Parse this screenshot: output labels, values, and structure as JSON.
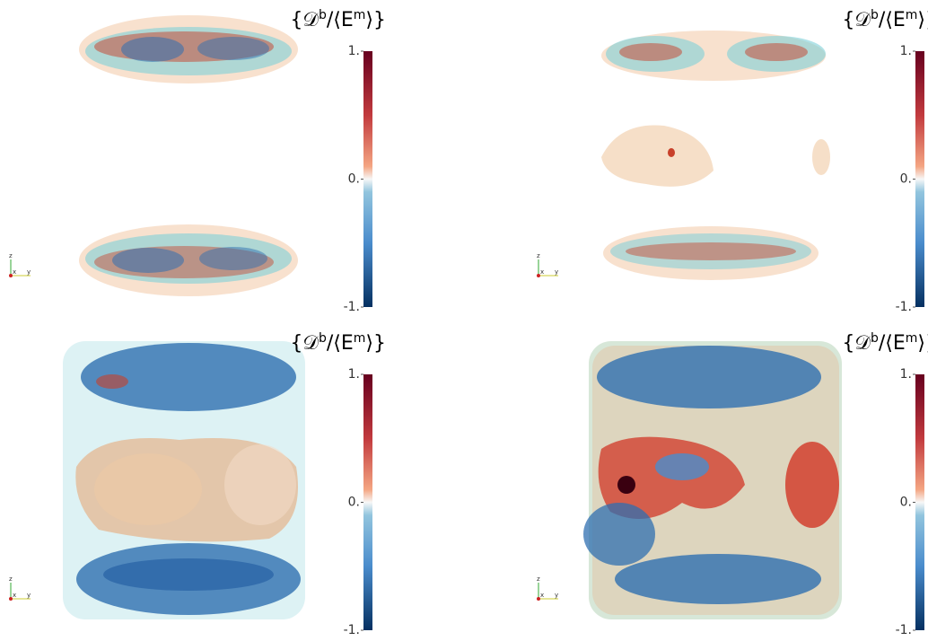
{
  "panels": [
    {
      "title": [
        "{𝒟",
        "b",
        "/⟨E",
        "m",
        "⟩}"
      ],
      "colorbar": {
        "ticks": [
          {
            "value": 1,
            "label": "1."
          },
          {
            "value": 0,
            "label": "0."
          },
          {
            "value": -1,
            "label": "-1."
          }
        ]
      },
      "axes": [
        "z",
        "x",
        "y"
      ]
    },
    {
      "title": [
        "{𝒟",
        "b",
        "/⟨E",
        "m",
        "⟩}"
      ],
      "colorbar": {
        "ticks": [
          {
            "value": 1,
            "label": "1."
          },
          {
            "value": 0,
            "label": "0."
          },
          {
            "value": -1,
            "label": "-1."
          }
        ]
      },
      "axes": [
        "z",
        "x",
        "y"
      ]
    },
    {
      "title": [
        "{𝒟",
        "b",
        "/⟨E",
        "m",
        "⟩}"
      ],
      "colorbar": {
        "ticks": [
          {
            "value": 1,
            "label": "1."
          },
          {
            "value": 0,
            "label": "0."
          },
          {
            "value": -1,
            "label": "-1."
          }
        ]
      },
      "axes": [
        "z",
        "x",
        "y"
      ]
    },
    {
      "title": [
        "{𝒟",
        "b",
        "/⟨E",
        "m",
        "⟩}"
      ],
      "colorbar": {
        "ticks": [
          {
            "value": 1,
            "label": "1."
          },
          {
            "value": 0,
            "label": "0."
          },
          {
            "value": -1,
            "label": "-1."
          }
        ]
      },
      "axes": [
        "z",
        "x",
        "y"
      ]
    }
  ]
}
